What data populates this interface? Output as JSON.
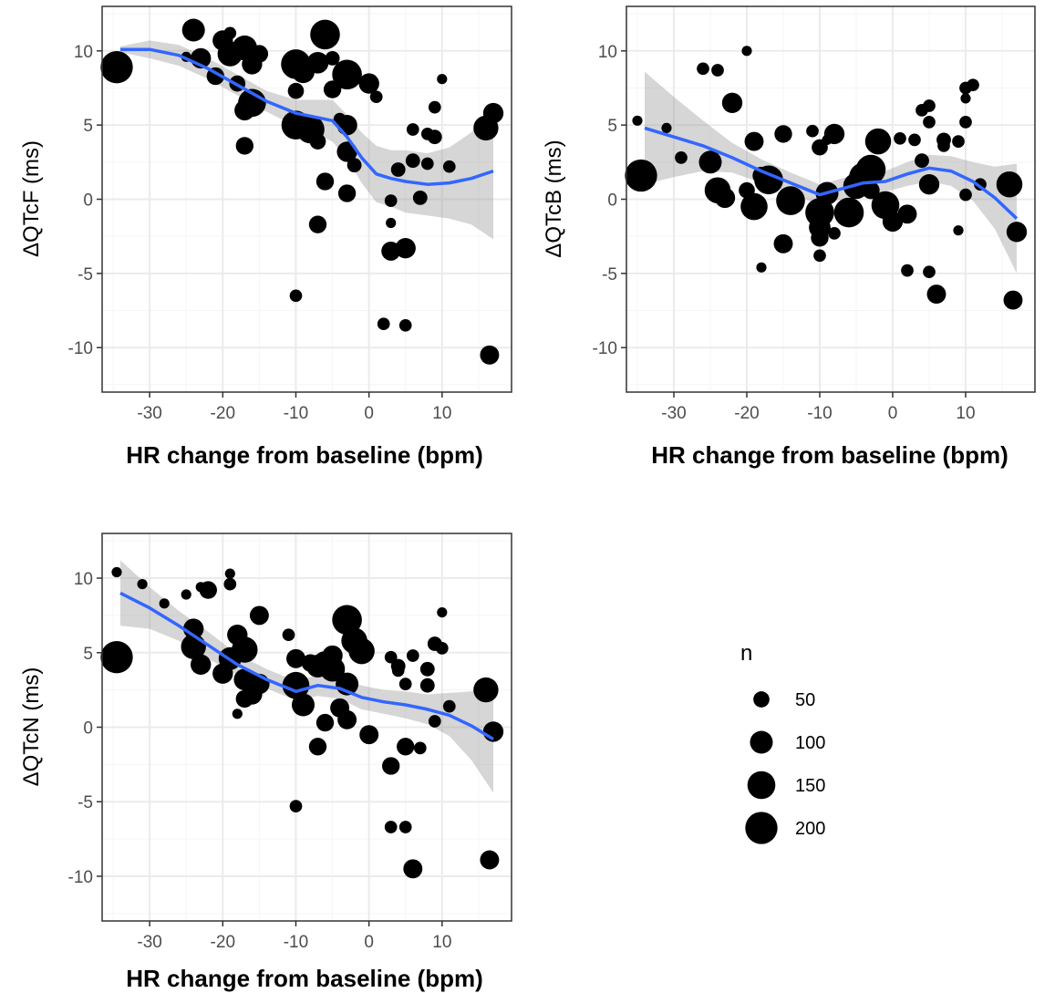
{
  "chart_data": [
    {
      "type": "scatter",
      "id": "qtcf",
      "xlabel": "HR change from baseline (bpm)",
      "ylabel": "ΔQTcF (ms)",
      "xlim": [
        -36.5,
        19.5
      ],
      "ylim": [
        -13,
        13
      ],
      "xticks": [
        -30,
        -20,
        -10,
        0,
        10
      ],
      "yticks": [
        -10,
        -5,
        0,
        5,
        10
      ],
      "grid": true,
      "points": [
        {
          "x": -34.5,
          "y": 8.9,
          "n": 200
        },
        {
          "x": -25,
          "y": 9.6,
          "n": 20
        },
        {
          "x": -24,
          "y": 11.4,
          "n": 100
        },
        {
          "x": -23,
          "y": 9.5,
          "n": 80
        },
        {
          "x": -21,
          "y": 8.3,
          "n": 60
        },
        {
          "x": -20,
          "y": 10.7,
          "n": 80
        },
        {
          "x": -19,
          "y": 11.2,
          "n": 30
        },
        {
          "x": -19,
          "y": 9.8,
          "n": 120
        },
        {
          "x": -18,
          "y": 7.8,
          "n": 50
        },
        {
          "x": -17,
          "y": 10.2,
          "n": 120
        },
        {
          "x": -16,
          "y": 9.1,
          "n": 80
        },
        {
          "x": -16,
          "y": 6.5,
          "n": 150
        },
        {
          "x": -17,
          "y": 6.0,
          "n": 80
        },
        {
          "x": -15,
          "y": 9.8,
          "n": 60
        },
        {
          "x": -17,
          "y": 3.6,
          "n": 60
        },
        {
          "x": -10,
          "y": 9.1,
          "n": 170
        },
        {
          "x": -9,
          "y": 8.6,
          "n": 100
        },
        {
          "x": -10,
          "y": 7.3,
          "n": 50
        },
        {
          "x": -10,
          "y": 5.0,
          "n": 160
        },
        {
          "x": -8,
          "y": 4.7,
          "n": 150
        },
        {
          "x": -7,
          "y": 3.9,
          "n": 50
        },
        {
          "x": -7,
          "y": 9.2,
          "n": 90
        },
        {
          "x": -6,
          "y": 11.1,
          "n": 170
        },
        {
          "x": -5,
          "y": 9.5,
          "n": 40
        },
        {
          "x": -5,
          "y": 7.4,
          "n": 60
        },
        {
          "x": -3,
          "y": 8.4,
          "n": 170
        },
        {
          "x": -4,
          "y": 5.4,
          "n": 30
        },
        {
          "x": -3,
          "y": 5.0,
          "n": 80
        },
        {
          "x": -3,
          "y": 3.2,
          "n": 80
        },
        {
          "x": -2,
          "y": 2.3,
          "n": 40
        },
        {
          "x": -6,
          "y": 1.2,
          "n": 60
        },
        {
          "x": -3,
          "y": 0.4,
          "n": 60
        },
        {
          "x": -7,
          "y": -1.7,
          "n": 60
        },
        {
          "x": 0,
          "y": 7.8,
          "n": 80
        },
        {
          "x": 1,
          "y": 6.9,
          "n": 30
        },
        {
          "x": 3,
          "y": -0.1,
          "n": 30
        },
        {
          "x": 3,
          "y": -1.6,
          "n": 20
        },
        {
          "x": 3,
          "y": -3.5,
          "n": 70
        },
        {
          "x": 5,
          "y": -3.3,
          "n": 80
        },
        {
          "x": 2,
          "y": -8.4,
          "n": 30
        },
        {
          "x": 5,
          "y": -8.5,
          "n": 30
        },
        {
          "x": -10,
          "y": -6.5,
          "n": 30
        },
        {
          "x": 4,
          "y": 2.0,
          "n": 40
        },
        {
          "x": 6,
          "y": 2.6,
          "n": 40
        },
        {
          "x": 6,
          "y": 4.7,
          "n": 30
        },
        {
          "x": 7,
          "y": 0.1,
          "n": 40
        },
        {
          "x": 8,
          "y": 4.4,
          "n": 30
        },
        {
          "x": 9,
          "y": 4.2,
          "n": 40
        },
        {
          "x": 8,
          "y": 2.4,
          "n": 30
        },
        {
          "x": 9,
          "y": 6.2,
          "n": 30
        },
        {
          "x": 10,
          "y": 8.1,
          "n": 20
        },
        {
          "x": 11,
          "y": 2.2,
          "n": 30
        },
        {
          "x": 16,
          "y": 4.8,
          "n": 120
        },
        {
          "x": 17,
          "y": 5.8,
          "n": 80
        },
        {
          "x": 16.5,
          "y": -10.5,
          "n": 70
        }
      ],
      "smooth": {
        "x": [
          -34,
          -30,
          -26,
          -22,
          -18,
          -14,
          -10,
          -7,
          -5,
          -3,
          -1,
          1,
          3,
          5,
          8,
          11,
          14,
          17
        ],
        "y": [
          10.1,
          10.1,
          9.7,
          8.8,
          7.7,
          6.6,
          5.8,
          5.5,
          5.3,
          4.2,
          2.8,
          1.7,
          1.4,
          1.2,
          1.0,
          1.1,
          1.4,
          1.9
        ],
        "lower": [
          9.9,
          9.5,
          9.0,
          8.1,
          7.0,
          5.9,
          4.9,
          4.3,
          3.9,
          2.7,
          1.1,
          -0.2,
          -0.5,
          -0.9,
          -1.1,
          -1.3,
          -1.7,
          -2.7
        ],
        "upper": [
          10.3,
          10.7,
          10.4,
          9.5,
          8.4,
          7.3,
          6.7,
          6.7,
          6.7,
          5.7,
          4.5,
          3.6,
          3.3,
          3.3,
          3.1,
          3.5,
          4.5,
          6.5
        ]
      }
    },
    {
      "type": "scatter",
      "id": "qtcb",
      "xlabel": "HR change from baseline (bpm)",
      "ylabel": "ΔQTcB (ms)",
      "xlim": [
        -36.5,
        19.5
      ],
      "ylim": [
        -13,
        13
      ],
      "xticks": [
        -30,
        -20,
        -10,
        0,
        10
      ],
      "yticks": [
        -10,
        -5,
        0,
        5,
        10
      ],
      "grid": true,
      "points": [
        {
          "x": -34.5,
          "y": 1.6,
          "n": 200
        },
        {
          "x": -35,
          "y": 5.3,
          "n": 20
        },
        {
          "x": -31,
          "y": 4.8,
          "n": 20
        },
        {
          "x": -29,
          "y": 2.8,
          "n": 30
        },
        {
          "x": -26,
          "y": 8.8,
          "n": 30
        },
        {
          "x": -24,
          "y": 8.7,
          "n": 30
        },
        {
          "x": -20,
          "y": 10.0,
          "n": 20
        },
        {
          "x": -22,
          "y": 6.5,
          "n": 80
        },
        {
          "x": -25,
          "y": 2.5,
          "n": 100
        },
        {
          "x": -24,
          "y": 0.6,
          "n": 130
        },
        {
          "x": -23,
          "y": 0.1,
          "n": 80
        },
        {
          "x": -20,
          "y": 0.6,
          "n": 50
        },
        {
          "x": -19,
          "y": 3.9,
          "n": 70
        },
        {
          "x": -19,
          "y": -0.5,
          "n": 140
        },
        {
          "x": -18,
          "y": 1.6,
          "n": 60
        },
        {
          "x": -17,
          "y": 1.3,
          "n": 160
        },
        {
          "x": -15,
          "y": 4.4,
          "n": 60
        },
        {
          "x": -14,
          "y": -0.1,
          "n": 160
        },
        {
          "x": -15,
          "y": -3.0,
          "n": 70
        },
        {
          "x": -18,
          "y": -4.6,
          "n": 20
        },
        {
          "x": -11,
          "y": 4.6,
          "n": 30
        },
        {
          "x": -10,
          "y": 3.5,
          "n": 50
        },
        {
          "x": -9,
          "y": 4.0,
          "n": 20
        },
        {
          "x": -9,
          "y": 0.4,
          "n": 100
        },
        {
          "x": -10,
          "y": -0.9,
          "n": 160
        },
        {
          "x": -10,
          "y": -1.9,
          "n": 90
        },
        {
          "x": -10,
          "y": -2.6,
          "n": 60
        },
        {
          "x": -10,
          "y": -3.8,
          "n": 30
        },
        {
          "x": -8,
          "y": 4.4,
          "n": 80
        },
        {
          "x": -8,
          "y": -2.3,
          "n": 30
        },
        {
          "x": -6,
          "y": -0.9,
          "n": 170
        },
        {
          "x": -5,
          "y": 0.9,
          "n": 130
        },
        {
          "x": -4,
          "y": 1.5,
          "n": 160
        },
        {
          "x": -3,
          "y": 2.0,
          "n": 170
        },
        {
          "x": -2,
          "y": 3.9,
          "n": 130
        },
        {
          "x": -3,
          "y": 0.6,
          "n": 60
        },
        {
          "x": -1,
          "y": -0.4,
          "n": 150
        },
        {
          "x": 0,
          "y": -1.5,
          "n": 80
        },
        {
          "x": 1,
          "y": 4.1,
          "n": 30
        },
        {
          "x": 2,
          "y": -1.0,
          "n": 70
        },
        {
          "x": 3,
          "y": 4.0,
          "n": 30
        },
        {
          "x": 4,
          "y": 2.6,
          "n": 40
        },
        {
          "x": 4,
          "y": 6.0,
          "n": 30
        },
        {
          "x": 5,
          "y": 6.3,
          "n": 30
        },
        {
          "x": 5,
          "y": 5.2,
          "n": 30
        },
        {
          "x": 5,
          "y": 1.0,
          "n": 80
        },
        {
          "x": 2,
          "y": -4.8,
          "n": 30
        },
        {
          "x": 5,
          "y": -4.9,
          "n": 30
        },
        {
          "x": 6,
          "y": -6.4,
          "n": 70
        },
        {
          "x": 7,
          "y": 4.0,
          "n": 40
        },
        {
          "x": 7,
          "y": 3.6,
          "n": 30
        },
        {
          "x": 9,
          "y": 3.9,
          "n": 30
        },
        {
          "x": 10,
          "y": 7.5,
          "n": 30
        },
        {
          "x": 11,
          "y": 7.7,
          "n": 30
        },
        {
          "x": 10,
          "y": 6.8,
          "n": 20
        },
        {
          "x": 10,
          "y": 5.2,
          "n": 30
        },
        {
          "x": 9,
          "y": -2.1,
          "n": 20
        },
        {
          "x": 10,
          "y": 0.3,
          "n": 30
        },
        {
          "x": 12,
          "y": 1.0,
          "n": 30
        },
        {
          "x": 16,
          "y": 1.0,
          "n": 130
        },
        {
          "x": 17,
          "y": -2.2,
          "n": 80
        },
        {
          "x": 16.5,
          "y": -6.8,
          "n": 70
        }
      ],
      "smooth": {
        "x": [
          -34,
          -30,
          -26,
          -22,
          -18,
          -14,
          -10,
          -7,
          -4,
          -1,
          2,
          5,
          8,
          11,
          14,
          17
        ],
        "y": [
          4.8,
          4.2,
          3.6,
          2.8,
          1.9,
          1.1,
          0.3,
          0.7,
          1.1,
          1.2,
          1.7,
          2.1,
          1.9,
          1.2,
          0.1,
          -1.3
        ],
        "lower": [
          1.0,
          1.5,
          1.9,
          1.8,
          1.1,
          0.4,
          -0.4,
          0.0,
          0.4,
          0.5,
          0.9,
          1.2,
          0.9,
          -0.1,
          -2.0,
          -5.0
        ],
        "upper": [
          8.6,
          6.9,
          5.3,
          3.8,
          2.7,
          1.8,
          1.0,
          1.4,
          1.8,
          1.9,
          2.5,
          3.0,
          2.9,
          2.5,
          2.2,
          2.4
        ]
      }
    },
    {
      "type": "scatter",
      "id": "qtcn",
      "xlabel": "HR change from baseline (bpm)",
      "ylabel": "ΔQTcN (ms)",
      "xlim": [
        -36.5,
        19.5
      ],
      "ylim": [
        -13,
        13
      ],
      "xticks": [
        -30,
        -20,
        -10,
        0,
        10
      ],
      "yticks": [
        -10,
        -5,
        0,
        5,
        10
      ],
      "grid": true,
      "points": [
        {
          "x": -34.5,
          "y": 4.7,
          "n": 200
        },
        {
          "x": -34.5,
          "y": 10.4,
          "n": 20
        },
        {
          "x": -31,
          "y": 9.6,
          "n": 20
        },
        {
          "x": -28,
          "y": 8.3,
          "n": 20
        },
        {
          "x": -25,
          "y": 8.9,
          "n": 20
        },
        {
          "x": -23,
          "y": 9.4,
          "n": 20
        },
        {
          "x": -22,
          "y": 9.2,
          "n": 60
        },
        {
          "x": -19,
          "y": 10.3,
          "n": 20
        },
        {
          "x": -19,
          "y": 9.6,
          "n": 30
        },
        {
          "x": -24,
          "y": 6.6,
          "n": 80
        },
        {
          "x": -24,
          "y": 5.4,
          "n": 120
        },
        {
          "x": -23,
          "y": 4.2,
          "n": 80
        },
        {
          "x": -20,
          "y": 3.6,
          "n": 80
        },
        {
          "x": -19,
          "y": 4.6,
          "n": 100
        },
        {
          "x": -18,
          "y": 6.2,
          "n": 80
        },
        {
          "x": -17,
          "y": 5.2,
          "n": 130
        },
        {
          "x": -17,
          "y": 3.2,
          "n": 90
        },
        {
          "x": -16,
          "y": 2.2,
          "n": 80
        },
        {
          "x": -17,
          "y": 1.9,
          "n": 60
        },
        {
          "x": -18,
          "y": 0.9,
          "n": 20
        },
        {
          "x": -15,
          "y": 7.5,
          "n": 70
        },
        {
          "x": -15,
          "y": 2.9,
          "n": 80
        },
        {
          "x": -11,
          "y": 6.2,
          "n": 30
        },
        {
          "x": -10,
          "y": 4.6,
          "n": 70
        },
        {
          "x": -10,
          "y": 2.8,
          "n": 140
        },
        {
          "x": -9,
          "y": 1.5,
          "n": 100
        },
        {
          "x": -10,
          "y": -5.3,
          "n": 30
        },
        {
          "x": -8,
          "y": 4.3,
          "n": 60
        },
        {
          "x": -7,
          "y": 4.1,
          "n": 100
        },
        {
          "x": -6,
          "y": 4.3,
          "n": 110
        },
        {
          "x": -5,
          "y": 4.8,
          "n": 80
        },
        {
          "x": -5,
          "y": 3.9,
          "n": 120
        },
        {
          "x": -3,
          "y": 7.2,
          "n": 170
        },
        {
          "x": -2,
          "y": 5.8,
          "n": 130
        },
        {
          "x": -1,
          "y": 5.1,
          "n": 130
        },
        {
          "x": -3,
          "y": 2.9,
          "n": 100
        },
        {
          "x": -4,
          "y": 1.3,
          "n": 70
        },
        {
          "x": -6,
          "y": 0.3,
          "n": 60
        },
        {
          "x": -7,
          "y": -1.3,
          "n": 60
        },
        {
          "x": -3,
          "y": 0.5,
          "n": 70
        },
        {
          "x": 0,
          "y": -0.5,
          "n": 70
        },
        {
          "x": 3,
          "y": -2.6,
          "n": 60
        },
        {
          "x": 3,
          "y": 4.7,
          "n": 30
        },
        {
          "x": 4,
          "y": 4.1,
          "n": 40
        },
        {
          "x": 4,
          "y": 3.8,
          "n": 30
        },
        {
          "x": 6,
          "y": 4.8,
          "n": 30
        },
        {
          "x": 5,
          "y": 2.9,
          "n": 30
        },
        {
          "x": 8,
          "y": 2.8,
          "n": 40
        },
        {
          "x": 8,
          "y": 3.9,
          "n": 40
        },
        {
          "x": 9,
          "y": 5.6,
          "n": 40
        },
        {
          "x": 10,
          "y": 5.3,
          "n": 30
        },
        {
          "x": 10,
          "y": 7.7,
          "n": 20
        },
        {
          "x": 11,
          "y": 1.4,
          "n": 30
        },
        {
          "x": 9,
          "y": 0.4,
          "n": 30
        },
        {
          "x": 5,
          "y": -1.3,
          "n": 60
        },
        {
          "x": 7,
          "y": -1.4,
          "n": 30
        },
        {
          "x": 3,
          "y": -6.7,
          "n": 30
        },
        {
          "x": 5,
          "y": -6.7,
          "n": 30
        },
        {
          "x": 6,
          "y": -9.5,
          "n": 70
        },
        {
          "x": 16,
          "y": 2.5,
          "n": 120
        },
        {
          "x": 17,
          "y": -0.3,
          "n": 80
        },
        {
          "x": 16.5,
          "y": -8.9,
          "n": 70
        }
      ],
      "smooth": {
        "x": [
          -34,
          -30,
          -26,
          -22,
          -18,
          -14,
          -10,
          -7,
          -4,
          -1,
          2,
          5,
          8,
          11,
          14,
          17
        ],
        "y": [
          9.0,
          8.0,
          6.8,
          5.5,
          4.2,
          3.2,
          2.4,
          2.8,
          2.6,
          2.0,
          1.7,
          1.5,
          1.2,
          0.8,
          0.1,
          -0.8
        ],
        "lower": [
          6.8,
          6.6,
          5.8,
          4.6,
          3.5,
          2.6,
          1.8,
          2.1,
          1.9,
          1.2,
          0.9,
          0.6,
          0.2,
          -0.6,
          -2.2,
          -4.4
        ],
        "upper": [
          11.2,
          9.4,
          7.8,
          6.4,
          4.9,
          3.9,
          3.1,
          3.5,
          3.4,
          2.8,
          2.5,
          2.4,
          2.2,
          2.3,
          2.4,
          2.8
        ]
      }
    }
  ],
  "legend": {
    "title": "n",
    "items": [
      {
        "label": "50",
        "n": 50
      },
      {
        "label": "100",
        "n": 100
      },
      {
        "label": "150",
        "n": 150
      },
      {
        "label": "200",
        "n": 200
      }
    ]
  },
  "colors": {
    "point": "#000000",
    "smooth": "#3366FF",
    "ribbon": "#999999",
    "grid_major": "#EBEBEB",
    "grid_minor": "#F5F5F5",
    "border": "#333333"
  }
}
